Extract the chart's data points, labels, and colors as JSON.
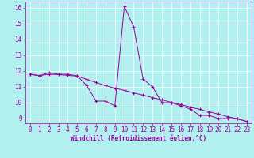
{
  "xlabel": "Windchill (Refroidissement éolien,°C)",
  "background_color": "#b2f0f0",
  "line_color": "#990099",
  "grid_color": "#ffffff",
  "spine_color": "#888888",
  "ylim": [
    8.7,
    16.4
  ],
  "xlim": [
    -0.5,
    23.5
  ],
  "yticks": [
    9,
    10,
    11,
    12,
    13,
    14,
    15,
    16
  ],
  "xticks": [
    0,
    1,
    2,
    3,
    4,
    5,
    6,
    7,
    8,
    9,
    10,
    11,
    12,
    13,
    14,
    15,
    16,
    17,
    18,
    19,
    20,
    21,
    22,
    23
  ],
  "series1_x": [
    0,
    1,
    2,
    3,
    4,
    5,
    6,
    7,
    8,
    9,
    10,
    11,
    12,
    13,
    14,
    15,
    16,
    17,
    18,
    19,
    20,
    21,
    22,
    23
  ],
  "series1_y": [
    11.8,
    11.7,
    11.9,
    11.8,
    11.8,
    11.7,
    11.1,
    10.1,
    10.1,
    9.8,
    16.1,
    14.8,
    11.5,
    11.0,
    10.0,
    10.0,
    9.8,
    9.6,
    9.2,
    9.2,
    9.0,
    9.0,
    9.0,
    8.8
  ],
  "series2_x": [
    0,
    1,
    2,
    3,
    4,
    5,
    6,
    7,
    8,
    9,
    10,
    11,
    12,
    13,
    14,
    15,
    16,
    17,
    18,
    19,
    20,
    21,
    22,
    23
  ],
  "series2_y": [
    11.8,
    11.72,
    11.8,
    11.78,
    11.73,
    11.68,
    11.48,
    11.28,
    11.08,
    10.92,
    10.78,
    10.62,
    10.48,
    10.32,
    10.18,
    10.02,
    9.88,
    9.72,
    9.58,
    9.42,
    9.28,
    9.12,
    8.98,
    8.82
  ],
  "xlabel_fontsize": 5.5,
  "tick_fontsize": 5.5
}
